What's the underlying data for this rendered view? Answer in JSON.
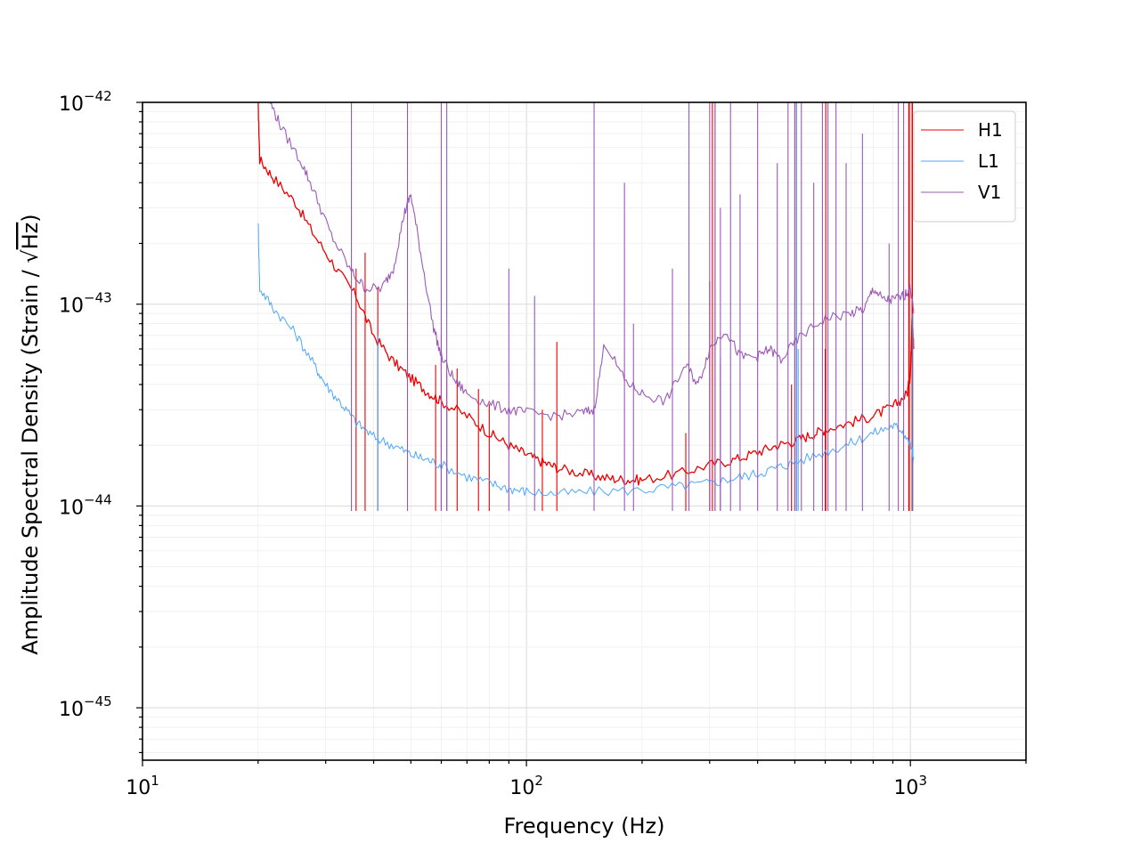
{
  "chart_data": {
    "type": "line",
    "xlabel": "Frequency (Hz)",
    "ylabel_prefix": "Amplitude Spectral Density (Strain / ",
    "ylabel_sqrt": "√",
    "ylabel_unit": "Hz",
    "ylabel_suffix": ")",
    "x_scale": "log",
    "y_scale": "log",
    "xlim": [
      10,
      2000
    ],
    "ylim": [
      5.5e-46,
      1e-42
    ],
    "grid": true,
    "legend_position": "top-right",
    "x_ticks": [
      {
        "value": 10,
        "base": "10",
        "exp": "1"
      },
      {
        "value": 100,
        "base": "10",
        "exp": "2"
      },
      {
        "value": 1000,
        "base": "10",
        "exp": "3"
      }
    ],
    "y_ticks": [
      {
        "value": 1e-42,
        "base": "10",
        "exp": "−42"
      },
      {
        "value": 1e-43,
        "base": "10",
        "exp": "−43"
      },
      {
        "value": 1e-44,
        "base": "10",
        "exp": "−44"
      },
      {
        "value": 1e-45,
        "base": "10",
        "exp": "−45"
      }
    ],
    "series": [
      {
        "name": "H1",
        "color": "#ee0000",
        "points": [
          [
            20,
            1e-42
          ],
          [
            20.2,
            5.2e-43
          ],
          [
            22,
            4.2e-43
          ],
          [
            25,
            3.2e-43
          ],
          [
            28,
            2.2e-43
          ],
          [
            32,
            1.5e-43
          ],
          [
            36,
            1.1e-43
          ],
          [
            40,
            7e-44
          ],
          [
            45,
            5.2e-44
          ],
          [
            50,
            4.3e-44
          ],
          [
            55,
            3.7e-44
          ],
          [
            60,
            3.3e-44
          ],
          [
            70,
            2.8e-44
          ],
          [
            80,
            2.3e-44
          ],
          [
            90,
            2e-44
          ],
          [
            100,
            1.8e-44
          ],
          [
            110,
            1.65e-44
          ],
          [
            120,
            1.55e-44
          ],
          [
            140,
            1.45e-44
          ],
          [
            160,
            1.38e-44
          ],
          [
            180,
            1.35e-44
          ],
          [
            200,
            1.35e-44
          ],
          [
            250,
            1.45e-44
          ],
          [
            300,
            1.6e-44
          ],
          [
            350,
            1.7e-44
          ],
          [
            400,
            1.85e-44
          ],
          [
            450,
            2e-44
          ],
          [
            500,
            2.1e-44
          ],
          [
            550,
            2.25e-44
          ],
          [
            600,
            2.4e-44
          ],
          [
            700,
            2.6e-44
          ],
          [
            800,
            2.8e-44
          ],
          [
            900,
            3.1e-44
          ],
          [
            980,
            3.6e-44
          ],
          [
            1000,
            4.5e-44
          ],
          [
            1010,
            9e-44
          ],
          [
            1020,
            6e-44
          ]
        ],
        "lines": [
          [
            36,
            1.5e-43
          ],
          [
            38,
            1.8e-43
          ],
          [
            41,
            1.2e-43
          ],
          [
            58,
            5e-44
          ],
          [
            60,
            7e-44
          ],
          [
            62,
            4.5e-44
          ],
          [
            66,
            4.8e-44
          ],
          [
            75,
            3.8e-44
          ],
          [
            80,
            3.2e-44
          ],
          [
            110,
            3e-44
          ],
          [
            120,
            6.5e-44
          ],
          [
            260,
            2.3e-44
          ],
          [
            300,
            1.3e-43
          ],
          [
            305,
            1e-42
          ],
          [
            310,
            1e-42
          ],
          [
            320,
            5e-44
          ],
          [
            490,
            4e-44
          ],
          [
            500,
            1e-42
          ],
          [
            505,
            1e-42
          ],
          [
            600,
            6e-44
          ],
          [
            602,
            1e-42
          ],
          [
            990,
            1e-42
          ],
          [
            993,
            1e-42
          ],
          [
            1010,
            1e-42
          ],
          [
            1012,
            1e-42
          ]
        ]
      },
      {
        "name": "L1",
        "color": "#4da6ff",
        "points": [
          [
            20,
            2.6e-43
          ],
          [
            20.2,
            1.2e-43
          ],
          [
            22,
            9.5e-44
          ],
          [
            25,
            7.2e-44
          ],
          [
            28,
            5e-44
          ],
          [
            30,
            4e-44
          ],
          [
            33,
            3.2e-44
          ],
          [
            36,
            2.6e-44
          ],
          [
            40,
            2.2e-44
          ],
          [
            45,
            2e-44
          ],
          [
            50,
            1.8e-44
          ],
          [
            55,
            1.7e-44
          ],
          [
            60,
            1.6e-44
          ],
          [
            70,
            1.4e-44
          ],
          [
            80,
            1.3e-44
          ],
          [
            90,
            1.22e-44
          ],
          [
            100,
            1.18e-44
          ],
          [
            120,
            1.15e-44
          ],
          [
            150,
            1.18e-44
          ],
          [
            200,
            1.2e-44
          ],
          [
            250,
            1.25e-44
          ],
          [
            300,
            1.3e-44
          ],
          [
            350,
            1.38e-44
          ],
          [
            400,
            1.45e-44
          ],
          [
            450,
            1.55e-44
          ],
          [
            500,
            1.65e-44
          ],
          [
            600,
            1.85e-44
          ],
          [
            700,
            2.05e-44
          ],
          [
            800,
            2.3e-44
          ],
          [
            900,
            2.5e-44
          ],
          [
            950,
            2.4e-44
          ],
          [
            1000,
            2e-44
          ],
          [
            1020,
            1.7e-44
          ]
        ],
        "lines": [
          [
            41,
            7e-44
          ],
          [
            60,
            2e-43
          ],
          [
            62,
            3e-44
          ],
          [
            310,
            1.3e-43
          ],
          [
            320,
            5.5e-44
          ],
          [
            500,
            1.1e-43
          ],
          [
            505,
            1e-42
          ],
          [
            510,
            6e-44
          ],
          [
            1015,
            9e-44
          ]
        ]
      },
      {
        "name": "V1",
        "color": "#9b59b6",
        "points": [
          [
            21.5,
            1e-42
          ],
          [
            23,
            7.5e-43
          ],
          [
            26,
            5e-43
          ],
          [
            28,
            3.6e-43
          ],
          [
            31,
            2.2e-43
          ],
          [
            35,
            1.45e-43
          ],
          [
            38,
            1.2e-43
          ],
          [
            42,
            1.2e-43
          ],
          [
            45,
            1.5e-43
          ],
          [
            48,
            2.8e-43
          ],
          [
            50,
            3.5e-43
          ],
          [
            53,
            1.8e-43
          ],
          [
            57,
            8e-44
          ],
          [
            60,
            5.5e-44
          ],
          [
            65,
            4.2e-44
          ],
          [
            70,
            3.6e-44
          ],
          [
            80,
            3.2e-44
          ],
          [
            90,
            3e-44
          ],
          [
            100,
            2.9e-44
          ],
          [
            120,
            2.8e-44
          ],
          [
            140,
            2.9e-44
          ],
          [
            150,
            3e-44
          ],
          [
            160,
            6.5e-44
          ],
          [
            180,
            4.2e-44
          ],
          [
            200,
            3.6e-44
          ],
          [
            230,
            3.3e-44
          ],
          [
            260,
            5e-44
          ],
          [
            280,
            4e-44
          ],
          [
            300,
            6e-44
          ],
          [
            330,
            7.5e-44
          ],
          [
            360,
            5.5e-44
          ],
          [
            400,
            5.5e-44
          ],
          [
            430,
            6e-44
          ],
          [
            460,
            5.3e-44
          ],
          [
            520,
            7e-44
          ],
          [
            600,
            8.5e-44
          ],
          [
            700,
            9e-44
          ],
          [
            760,
            9.5e-44
          ],
          [
            800,
            1.2e-43
          ],
          [
            850,
            1.05e-43
          ],
          [
            900,
            1.05e-43
          ],
          [
            960,
            1.1e-43
          ],
          [
            1000,
            1.2e-43
          ],
          [
            1020,
            9e-44
          ]
        ],
        "lines": [
          [
            35,
            1e-42
          ],
          [
            49,
            1e-42
          ],
          [
            60,
            1e-42
          ],
          [
            62,
            1e-42
          ],
          [
            90,
            1.5e-43
          ],
          [
            105,
            1.1e-43
          ],
          [
            150,
            1e-42
          ],
          [
            180,
            4e-43
          ],
          [
            190,
            8e-44
          ],
          [
            240,
            1.5e-43
          ],
          [
            265,
            1e-42
          ],
          [
            300,
            1e-42
          ],
          [
            310,
            1e-42
          ],
          [
            320,
            3e-43
          ],
          [
            340,
            1e-42
          ],
          [
            360,
            3.5e-43
          ],
          [
            400,
            1e-42
          ],
          [
            450,
            5e-43
          ],
          [
            480,
            1e-42
          ],
          [
            500,
            1e-42
          ],
          [
            520,
            1e-42
          ],
          [
            560,
            4e-43
          ],
          [
            590,
            1e-42
          ],
          [
            610,
            1e-42
          ],
          [
            640,
            1e-42
          ],
          [
            680,
            5e-43
          ],
          [
            750,
            7e-43
          ],
          [
            880,
            2e-43
          ],
          [
            930,
            1e-42
          ],
          [
            960,
            1e-42
          ]
        ]
      }
    ]
  }
}
